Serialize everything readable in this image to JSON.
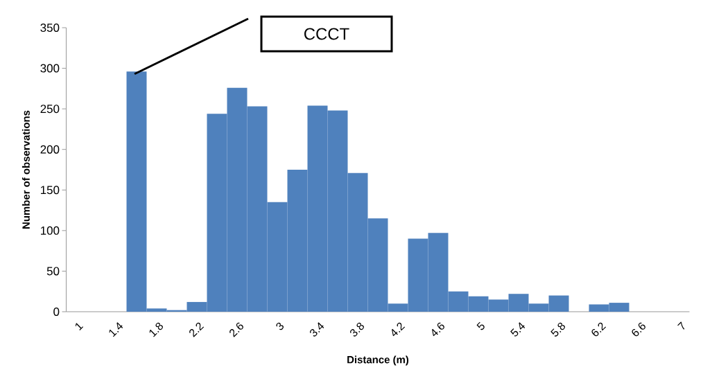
{
  "chart_data": {
    "type": "bar",
    "xlabel": "Distance (m)",
    "ylabel": "Number of observations",
    "categories": [
      "1",
      null,
      "1.4",
      null,
      "1.8",
      null,
      "2.2",
      null,
      "2.6",
      null,
      "3",
      null,
      "3.4",
      null,
      "3.8",
      null,
      "4.2",
      null,
      "4.6",
      null,
      "5",
      null,
      "5.4",
      null,
      "5.8",
      null,
      "6.2",
      null,
      "6.6",
      null,
      "7"
    ],
    "values": [
      0,
      0,
      0,
      296,
      4,
      2,
      12,
      244,
      276,
      253,
      135,
      175,
      254,
      248,
      171,
      115,
      10,
      90,
      97,
      25,
      19,
      15,
      22,
      10,
      20,
      0,
      9,
      11,
      0,
      0,
      0
    ],
    "color": "#4f81bd",
    "ylim": [
      0,
      350
    ],
    "yticks": [
      0,
      50,
      100,
      150,
      200,
      250,
      300,
      350
    ],
    "annotations": [
      "CCCT"
    ]
  }
}
